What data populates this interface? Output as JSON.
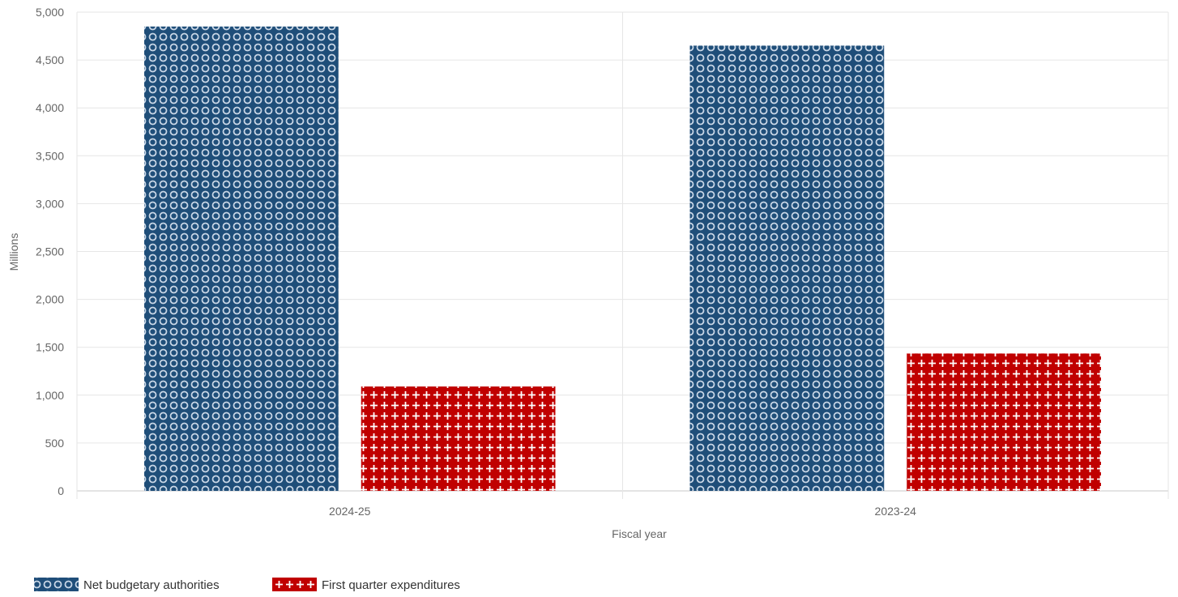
{
  "chart_data": {
    "type": "bar",
    "categories": [
      "2024-25",
      "2023-24"
    ],
    "series": [
      {
        "name": "Net budgetary authorities",
        "values": [
          4850,
          4650
        ],
        "color": "#1f4e79",
        "pattern": "circles"
      },
      {
        "name": "First quarter expenditures",
        "values": [
          1090,
          1435
        ],
        "color": "#c00000",
        "pattern": "plus"
      }
    ],
    "xlabel": "Fiscal year",
    "ylabel": "Millions",
    "ylim": [
      0,
      5000
    ],
    "yticks": [
      "0",
      "500",
      "1,000",
      "1,500",
      "2,000",
      "2,500",
      "3,000",
      "3,500",
      "4,000",
      "4,500",
      "5,000"
    ],
    "grid": true,
    "legend": "bottom-left"
  }
}
